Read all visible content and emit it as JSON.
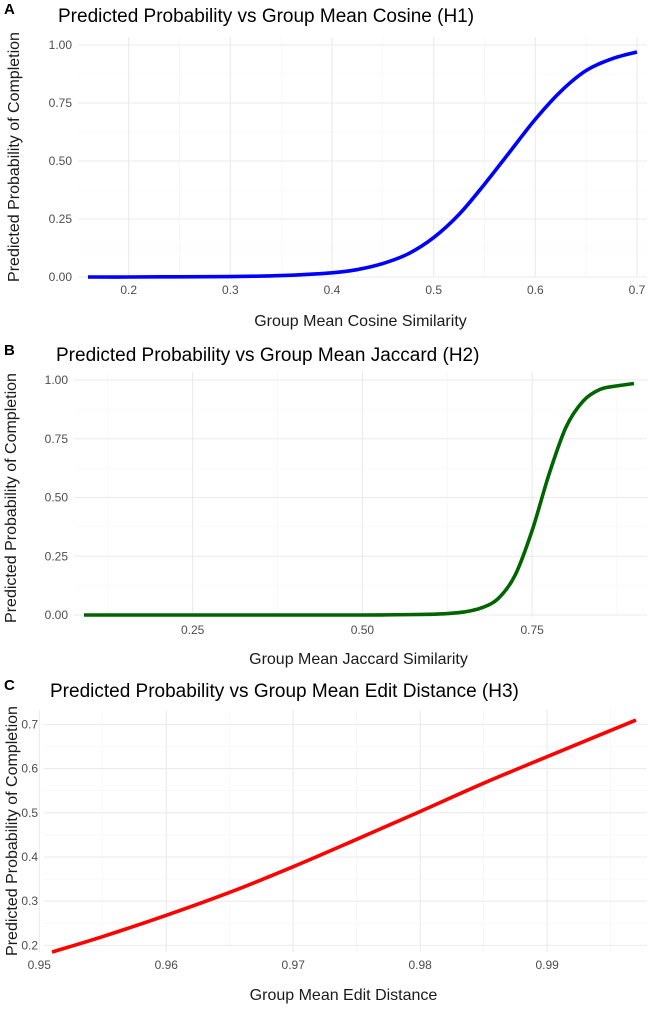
{
  "chart_data": [
    {
      "panel": "A",
      "type": "line",
      "title": "Predicted Probability vs Group Mean Cosine (H1)",
      "xlabel": "Group Mean Cosine Similarity",
      "ylabel": "Predicted Probability of Completion",
      "xlim": [
        0.16,
        0.7
      ],
      "ylim": [
        0,
        1
      ],
      "xticks": [
        0.2,
        0.3,
        0.4,
        0.5,
        0.6,
        0.7
      ],
      "xtick_labels": [
        "0.2",
        "0.3",
        "0.4",
        "0.5",
        "0.6",
        "0.7"
      ],
      "yticks": [
        0,
        0.25,
        0.5,
        0.75,
        1
      ],
      "ytick_labels": [
        "0.00",
        "0.25",
        "0.50",
        "0.75",
        "1.00"
      ],
      "grid": true,
      "color": "#0000ff",
      "series": [
        {
          "x": [
            0.16,
            0.2,
            0.25,
            0.3,
            0.35,
            0.4,
            0.425,
            0.45,
            0.475,
            0.5,
            0.525,
            0.55,
            0.575,
            0.6,
            0.625,
            0.65,
            0.675,
            0.7
          ],
          "y": [
            0.0,
            0.0,
            0.001,
            0.002,
            0.006,
            0.018,
            0.032,
            0.058,
            0.1,
            0.17,
            0.27,
            0.4,
            0.54,
            0.68,
            0.8,
            0.89,
            0.94,
            0.97
          ]
        }
      ]
    },
    {
      "panel": "B",
      "type": "line",
      "title": "Predicted Probability vs Group Mean Jaccard (H2)",
      "xlabel": "Group Mean Jaccard Similarity",
      "ylabel": "Predicted Probability of Completion",
      "xlim": [
        0.09,
        0.9
      ],
      "ylim": [
        0,
        1
      ],
      "xticks": [
        0.25,
        0.5,
        0.75
      ],
      "xtick_labels": [
        "0.25",
        "0.50",
        "0.75"
      ],
      "yticks": [
        0,
        0.25,
        0.5,
        0.75,
        1
      ],
      "ytick_labels": [
        "0.00",
        "0.25",
        "0.50",
        "0.75",
        "1.00"
      ],
      "grid": true,
      "color": "#006400",
      "series": [
        {
          "x": [
            0.09,
            0.2,
            0.3,
            0.4,
            0.5,
            0.55,
            0.6,
            0.625,
            0.65,
            0.675,
            0.7,
            0.725,
            0.75,
            0.775,
            0.8,
            0.825,
            0.85,
            0.875,
            0.9
          ],
          "y": [
            0.0,
            0.0,
            0.0,
            0.0,
            0.0,
            0.001,
            0.003,
            0.006,
            0.013,
            0.03,
            0.07,
            0.17,
            0.36,
            0.6,
            0.8,
            0.91,
            0.96,
            0.975,
            0.985
          ]
        }
      ]
    },
    {
      "panel": "C",
      "type": "line",
      "title": "Predicted Probability vs Group Mean Edit Distance (H3)",
      "xlabel": "Group Mean Edit Distance",
      "ylabel": "Predicted Probability of Completion",
      "xlim": [
        0.951,
        0.997
      ],
      "ylim": [
        0.185,
        0.71
      ],
      "xticks": [
        0.95,
        0.96,
        0.97,
        0.98,
        0.99
      ],
      "xtick_labels": [
        "0.95",
        "0.96",
        "0.97",
        "0.98",
        "0.99"
      ],
      "yticks": [
        0.2,
        0.3,
        0.4,
        0.5,
        0.6,
        0.7
      ],
      "ytick_labels": [
        "0.2",
        "0.3",
        "0.4",
        "0.5",
        "0.6",
        "0.7"
      ],
      "grid": true,
      "color": "#ff0000",
      "series": [
        {
          "x": [
            0.951,
            0.955,
            0.96,
            0.965,
            0.97,
            0.975,
            0.98,
            0.985,
            0.99,
            0.997
          ],
          "y": [
            0.185,
            0.22,
            0.268,
            0.32,
            0.378,
            0.44,
            0.503,
            0.567,
            0.627,
            0.71
          ]
        }
      ]
    }
  ]
}
